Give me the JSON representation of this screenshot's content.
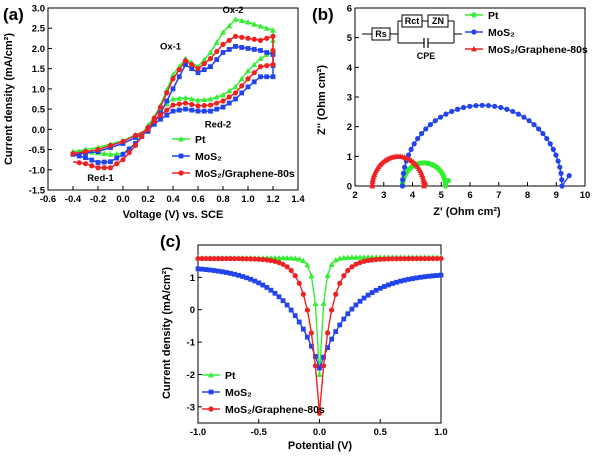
{
  "chart_data": [
    {
      "type": "line",
      "panel_label": "(a)",
      "xlabel": "Voltage (V) vs. SCE",
      "ylabel": "Current density (mA/cm²)",
      "xlim": [
        -0.6,
        1.4
      ],
      "ylim": [
        -1.5,
        3.0
      ],
      "xticks": [
        "-0.6",
        "-0.4",
        "-0.2",
        "0.0",
        "0.2",
        "0.4",
        "0.6",
        "0.8",
        "1.0",
        "1.2",
        "1.4"
      ],
      "yticks": [
        "-1.5",
        "-1.0",
        "-0.5",
        "0.0",
        "0.5",
        "1.0",
        "1.5",
        "2.0",
        "2.5",
        "3.0"
      ],
      "annotations": [
        {
          "text": "Ox-1",
          "x": 0.38,
          "y": 1.98
        },
        {
          "text": "Ox-2",
          "x": 0.88,
          "y": 2.88
        },
        {
          "text": "Red-1",
          "x": -0.18,
          "y": -1.28
        },
        {
          "text": "Red-2",
          "x": 0.76,
          "y": 0.05
        }
      ],
      "legend": [
        "Pt",
        "MoS₂",
        "MoS₂/Graphene-80s"
      ],
      "legend_position": "bottom-right",
      "series": [
        {
          "name": "Pt",
          "color": "#33ee33",
          "forward_x": [
            -0.4,
            -0.2,
            0.0,
            0.2,
            0.3,
            0.4,
            0.5,
            0.6,
            0.7,
            0.8,
            0.9,
            1.0,
            1.1,
            1.2
          ],
          "forward_y": [
            -0.55,
            -0.45,
            -0.28,
            0.0,
            0.6,
            1.35,
            1.75,
            1.55,
            1.9,
            2.4,
            2.72,
            2.65,
            2.55,
            2.45
          ],
          "reverse_x": [
            1.2,
            1.1,
            1.0,
            0.9,
            0.8,
            0.7,
            0.6,
            0.5,
            0.4,
            0.3,
            0.2,
            0.1,
            0.0,
            -0.1,
            -0.2,
            -0.3,
            -0.4
          ],
          "reverse_y": [
            1.95,
            1.75,
            1.45,
            1.05,
            0.85,
            0.75,
            0.72,
            0.78,
            0.75,
            0.5,
            0.1,
            -0.35,
            -0.6,
            -0.62,
            -0.58,
            -0.55,
            -0.55
          ]
        },
        {
          "name": "MoS₂",
          "color": "#2244ee",
          "forward_x": [
            -0.4,
            -0.2,
            0.0,
            0.2,
            0.3,
            0.4,
            0.5,
            0.6,
            0.7,
            0.8,
            0.9,
            1.0,
            1.1,
            1.2
          ],
          "forward_y": [
            -0.62,
            -0.55,
            -0.35,
            -0.05,
            0.4,
            1.0,
            1.6,
            1.4,
            1.55,
            1.9,
            2.05,
            2.0,
            1.95,
            1.85
          ],
          "reverse_x": [
            1.2,
            1.1,
            1.0,
            0.9,
            0.8,
            0.7,
            0.6,
            0.5,
            0.4,
            0.3,
            0.2,
            0.1,
            0.0,
            -0.1,
            -0.2,
            -0.3,
            -0.4
          ],
          "reverse_y": [
            1.3,
            1.3,
            1.05,
            0.75,
            0.55,
            0.45,
            0.45,
            0.5,
            0.45,
            0.25,
            0.0,
            -0.35,
            -0.62,
            -0.8,
            -0.82,
            -0.7,
            -0.62
          ]
        },
        {
          "name": "MoS₂/Graphene-80s",
          "color": "#ee2222",
          "forward_x": [
            -0.4,
            -0.2,
            0.0,
            0.2,
            0.3,
            0.4,
            0.5,
            0.6,
            0.7,
            0.8,
            0.9,
            1.0,
            1.1,
            1.2
          ],
          "forward_y": [
            -0.6,
            -0.5,
            -0.3,
            0.0,
            0.55,
            1.25,
            1.7,
            1.5,
            1.75,
            2.1,
            2.3,
            2.25,
            2.2,
            2.3
          ],
          "reverse_x": [
            1.2,
            1.1,
            1.0,
            0.9,
            0.8,
            0.7,
            0.6,
            0.5,
            0.4,
            0.3,
            0.2,
            0.1,
            0.0,
            -0.1,
            -0.2,
            -0.3,
            -0.4
          ],
          "reverse_y": [
            1.6,
            1.55,
            1.25,
            0.9,
            0.7,
            0.6,
            0.58,
            0.65,
            0.6,
            0.35,
            0.05,
            -0.4,
            -0.75,
            -0.95,
            -0.95,
            -0.85,
            -0.8
          ]
        }
      ]
    },
    {
      "type": "scatter",
      "panel_label": "(b)",
      "xlabel": "Z' (Ohm cm²)",
      "ylabel": "Z'' (Ohm cm²)",
      "xlim": [
        2,
        10
      ],
      "ylim": [
        0,
        6
      ],
      "xticks": [
        "2",
        "3",
        "4",
        "5",
        "6",
        "7",
        "8",
        "9",
        "10"
      ],
      "yticks": [
        "0",
        "1",
        "2",
        "3",
        "4",
        "5",
        "6"
      ],
      "legend": [
        "Pt",
        "MoS₂",
        "MoS₂/Graphene-80s"
      ],
      "legend_position": "top-right",
      "inset_circuit": {
        "elements": [
          "Rs",
          "Rct",
          "ZN",
          "CPE"
        ]
      },
      "series": [
        {
          "name": "Pt",
          "color": "#33ee33",
          "arc_start": 3.65,
          "arc_end": 5.15,
          "peak": 0.78,
          "tail_to": [
            5.25,
            0.18
          ]
        },
        {
          "name": "MoS₂",
          "color": "#2244ee",
          "arc_start": 3.65,
          "arc_end": 9.2,
          "peak": 2.72,
          "tail_to": [
            9.45,
            0.35
          ]
        },
        {
          "name": "MoS₂/Graphene-80s",
          "color": "#ee2222",
          "arc_start": 2.6,
          "arc_end": 4.4,
          "peak": 1.0,
          "tail_to": [
            4.45,
            0.12
          ]
        }
      ]
    },
    {
      "type": "line",
      "panel_label": "(c)",
      "xlabel": "Potential (V)",
      "ylabel": "Current density (mA/cm²)",
      "xlim": [
        -1.0,
        1.0
      ],
      "ylim": [
        -3.5,
        2.0
      ],
      "xticks": [
        "-1.0",
        "-0.5",
        "0.0",
        "0.5",
        "1.0"
      ],
      "yticks": [
        "-3",
        "-2",
        "-1",
        "0",
        "1"
      ],
      "legend": [
        "Pt",
        "MoS₂",
        "MoS₂/Graphene-80s"
      ],
      "legend_position": "bottom-left",
      "series": [
        {
          "name": "Pt",
          "color": "#33ee33",
          "plateau_neg": 1.6,
          "plateau_pos": 1.62,
          "k": 28,
          "min": -2.0
        },
        {
          "name": "MoS₂",
          "color": "#2244ee",
          "plateau_neg": 1.35,
          "plateau_pos": 1.15,
          "k": 3.6,
          "min": -1.8
        },
        {
          "name": "MoS₂/Graphene-80s",
          "color": "#ee2222",
          "plateau_neg": 1.58,
          "plateau_pos": 1.58,
          "k": 11,
          "min": -3.2
        }
      ]
    }
  ]
}
